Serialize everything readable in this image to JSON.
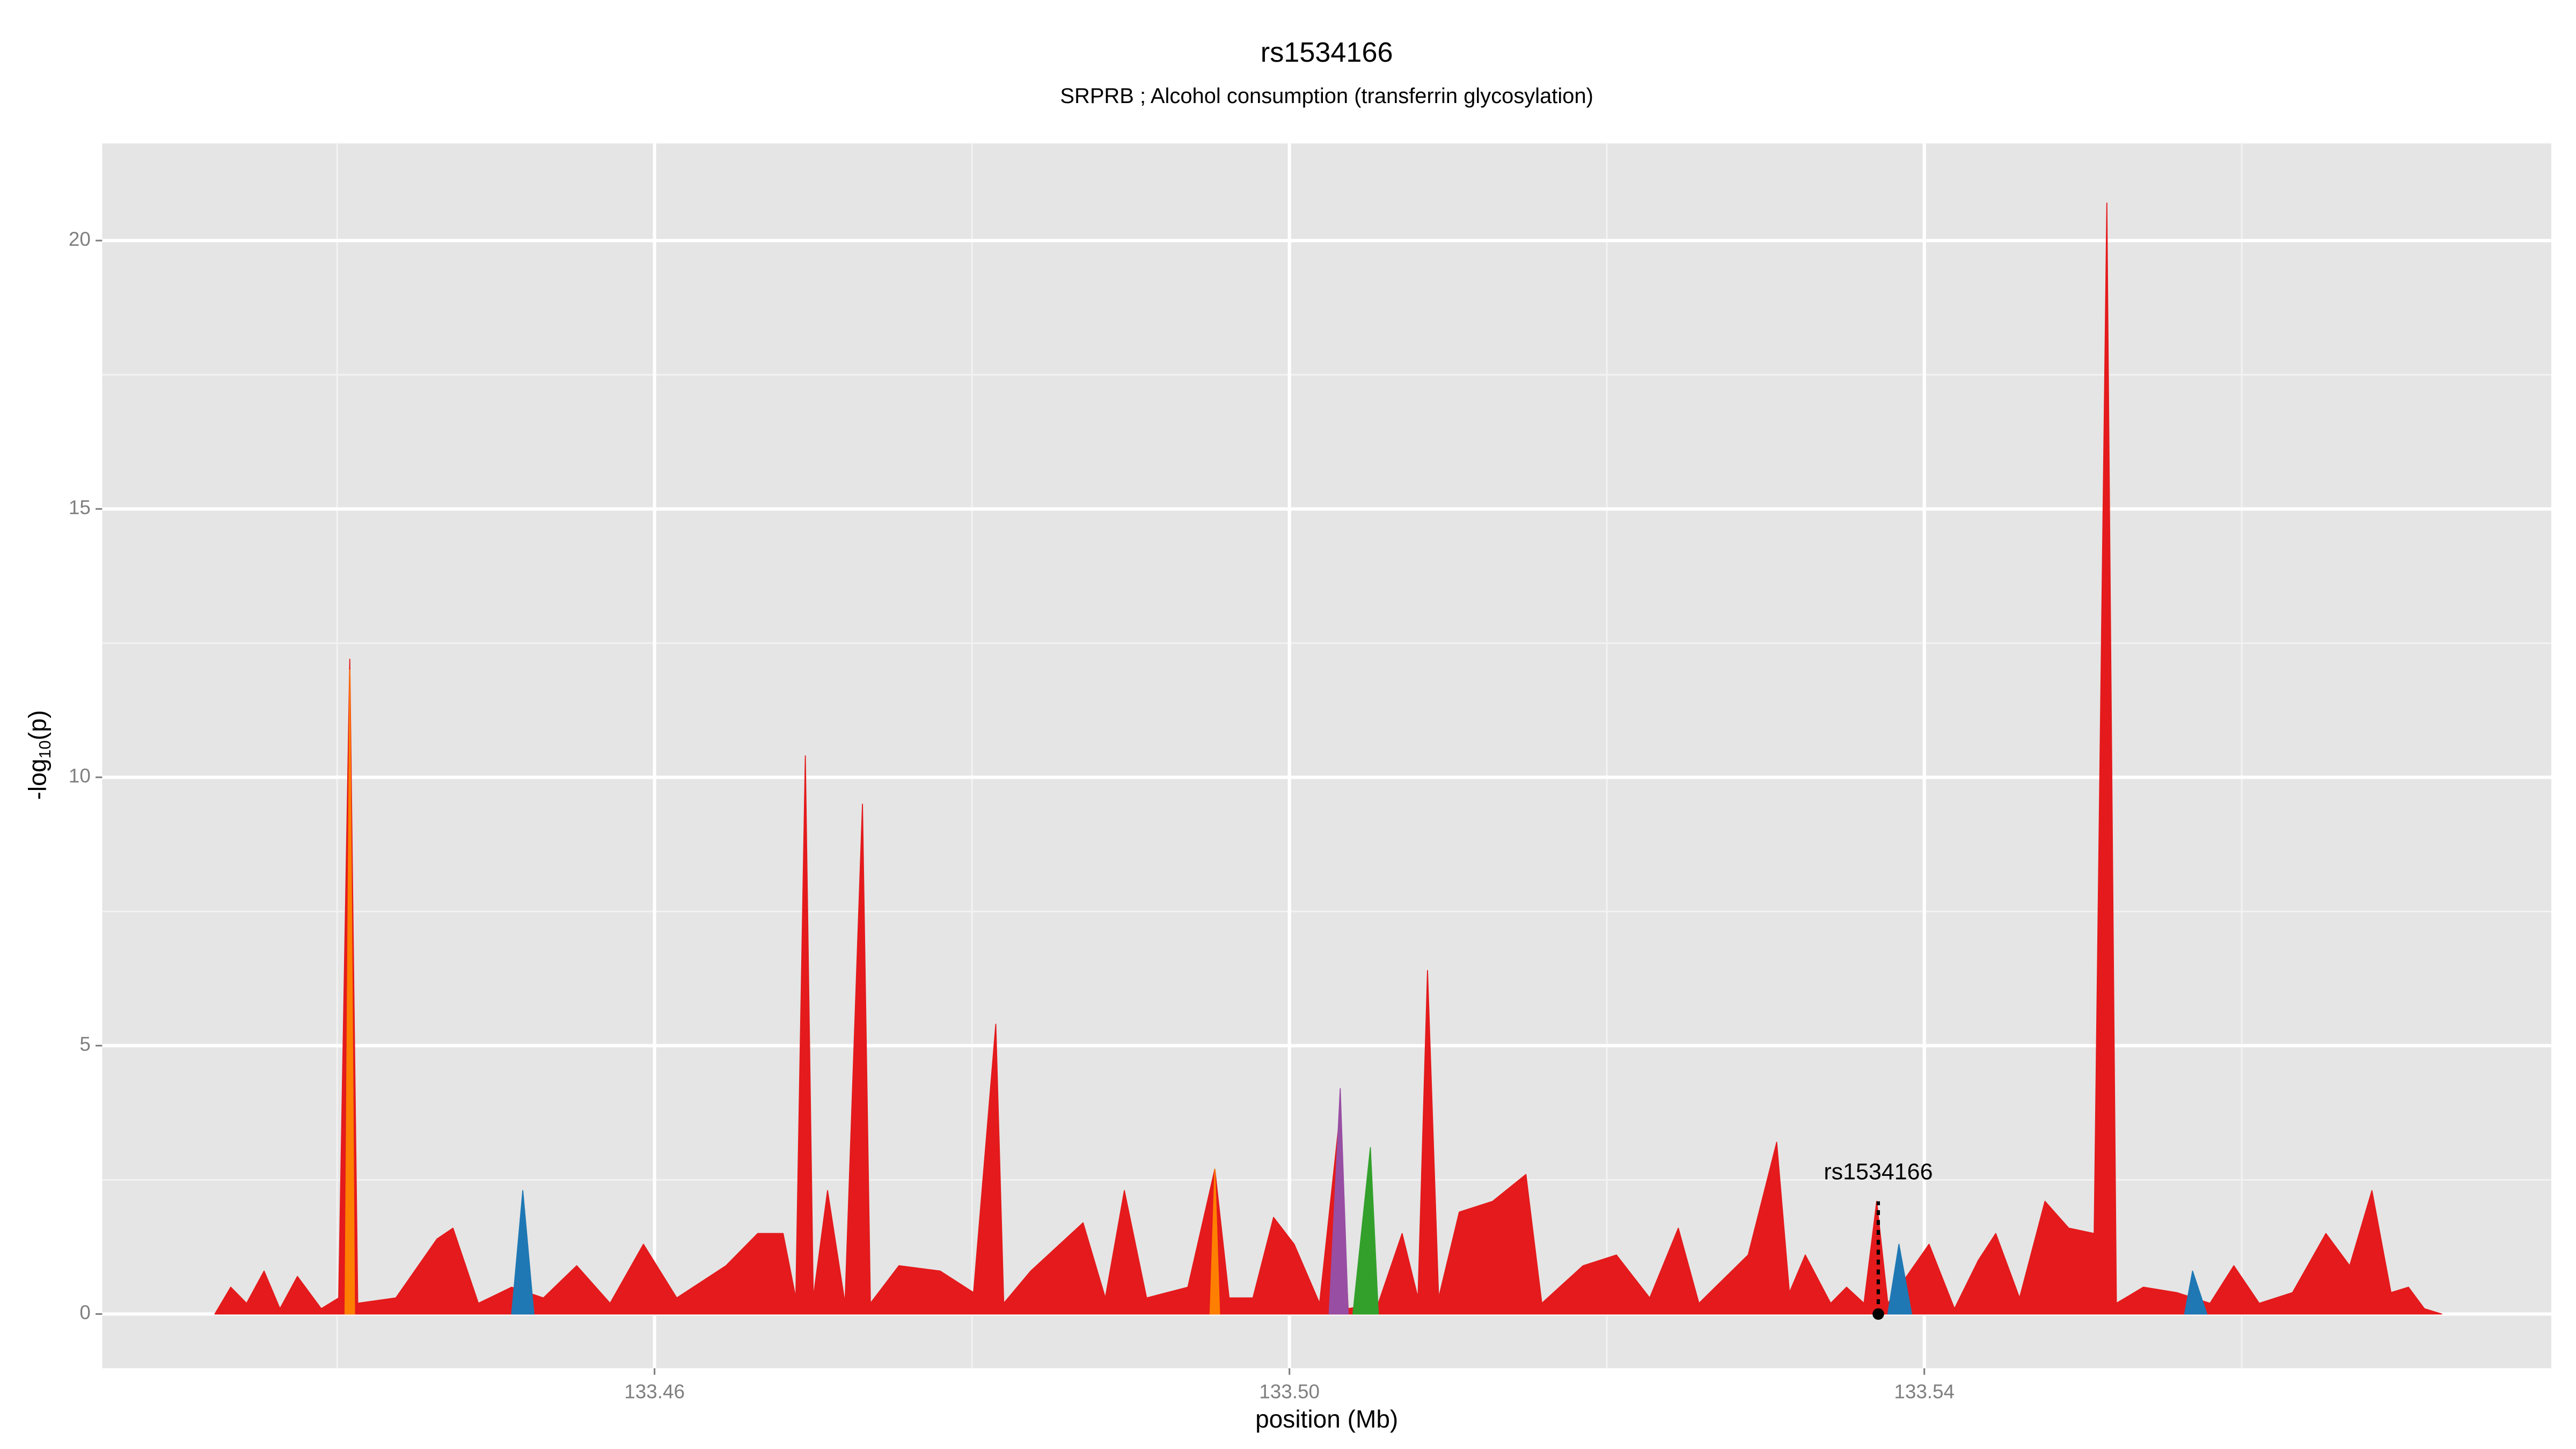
{
  "chart_data": {
    "type": "area",
    "title": "rs1534166",
    "subtitle": "SRPRB ; Alcohol consumption (transferrin glycosylation)",
    "xlabel": "position (Mb)",
    "ylabel": [
      "-log",
      "10",
      "(p)"
    ],
    "xlim": [
      133.4252,
      133.5795
    ],
    "ylim": [
      -1.01,
      21.81
    ],
    "xticks": [
      133.46,
      {
        "value": 133.5,
        "label": "133.50"
      },
      133.54
    ],
    "yticks": [
      0,
      5,
      10,
      15,
      20
    ],
    "x_minor_grid": [
      133.44,
      133.48,
      133.52,
      133.56
    ],
    "y_minor_grid": [
      2.5,
      7.5,
      12.5,
      17.5
    ],
    "grid": true,
    "series": [
      {
        "color": "#e41a1c",
        "x": [
          133.4323,
          133.4333,
          133.4343,
          133.4354,
          133.4364,
          133.4375,
          133.439,
          133.4401,
          133.4408,
          133.4413,
          133.4437,
          133.4463,
          133.4473,
          133.4489,
          133.451,
          133.453,
          133.4551,
          133.4572,
          133.4593,
          133.4614,
          133.4645,
          133.4665,
          133.4681,
          133.4689,
          133.4695,
          133.47,
          133.4709,
          133.472,
          133.4731,
          133.4736,
          133.4754,
          133.478,
          133.4801,
          133.4815,
          133.482,
          133.4837,
          133.487,
          133.4884,
          133.4896,
          133.491,
          133.4936,
          133.4953,
          133.4962,
          133.4977,
          133.499,
          133.5003,
          133.5019,
          133.5031,
          133.5037,
          133.5056,
          133.5071,
          133.5081,
          133.5087,
          133.5094,
          133.5107,
          133.5128,
          133.5149,
          133.5159,
          133.5185,
          133.5206,
          133.5227,
          133.5245,
          133.5258,
          133.5289,
          133.5307,
          133.5315,
          133.5325,
          133.5341,
          133.5351,
          133.5362,
          133.537,
          133.5377,
          133.5403,
          133.5419,
          133.5434,
          133.5445,
          133.546,
          133.5476,
          133.5491,
          133.5507,
          133.5515,
          133.5521,
          133.5538,
          133.5559,
          133.558,
          133.5595,
          133.5611,
          133.5632,
          133.5653,
          133.5668,
          133.5682,
          133.5694,
          133.5705,
          133.5715,
          133.5726
        ],
        "values": [
          0,
          0.5,
          0.2,
          0.8,
          0.1,
          0.7,
          0.1,
          0.3,
          12.2,
          0.2,
          0.3,
          1.4,
          1.6,
          0.2,
          0.5,
          0.3,
          0.9,
          0.2,
          1.3,
          0.3,
          0.9,
          1.5,
          1.5,
          0.3,
          10.4,
          0.3,
          2.3,
          0.2,
          9.5,
          0.2,
          0.9,
          0.8,
          0.4,
          5.4,
          0.2,
          0.8,
          1.7,
          0.3,
          2.3,
          0.3,
          0.5,
          2.7,
          0.3,
          0.3,
          1.8,
          1.3,
          0.2,
          3.5,
          0.1,
          0.2,
          1.5,
          0.3,
          6.4,
          0.3,
          1.9,
          2.1,
          2.6,
          0.2,
          0.9,
          1.1,
          0.3,
          1.6,
          0.2,
          1.1,
          3.2,
          0.4,
          1.1,
          0.2,
          0.5,
          0.2,
          2.1,
          0.2,
          1.3,
          0.1,
          1.0,
          1.5,
          0.3,
          2.1,
          1.6,
          1.5,
          20.7,
          0.2,
          0.5,
          0.4,
          0.2,
          0.9,
          0.2,
          0.4,
          1.5,
          0.9,
          2.3,
          0.4,
          0.5,
          0.1,
          0
        ]
      },
      {
        "color": "#1f78b4",
        "x": [
          133.451,
          133.4517,
          133.4524,
          133.5,
          133.5377,
          133.5384,
          133.5392,
          133.55,
          133.5564,
          133.5569,
          133.5578
        ],
        "values": [
          0,
          2.3,
          0,
          null,
          0,
          1.3,
          0,
          null,
          0,
          0.8,
          0
        ]
      },
      {
        "color": "#ff7f00",
        "x": [
          133.4405,
          133.4408,
          133.4411,
          133.47,
          133.495,
          133.4953,
          133.4956
        ],
        "values": [
          0,
          12,
          0,
          null,
          0,
          2.7,
          0
        ]
      },
      {
        "color": "#984ea3",
        "x": [
          133.5025,
          133.5032,
          133.5037
        ],
        "values": [
          0,
          4.2,
          0
        ]
      },
      {
        "color": "#33a02c",
        "x": [
          133.504,
          133.5051,
          133.5056
        ],
        "values": [
          0,
          3.1,
          0
        ]
      }
    ],
    "annotation": {
      "label": "rs1534166",
      "x": 133.5371,
      "y": 2.1
    }
  }
}
